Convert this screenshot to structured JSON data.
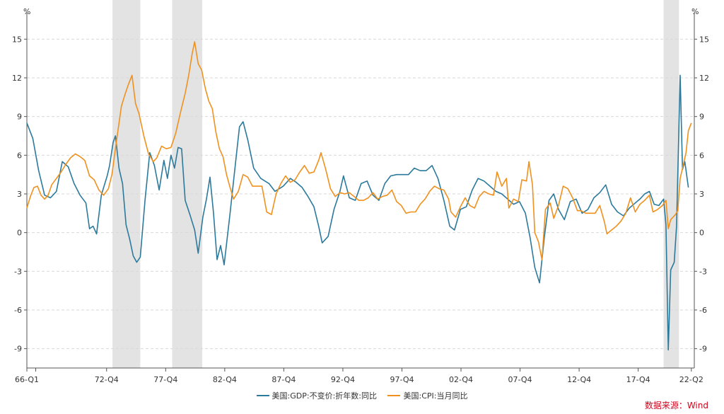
{
  "chart_data": {
    "type": "line",
    "y_unit_left": "%",
    "y_unit_right": "%",
    "ylim": [
      -10.5,
      16.5
    ],
    "y_ticks": [
      -9,
      -6,
      -3,
      0,
      3,
      6,
      9,
      12,
      15
    ],
    "x_start": 1966.0,
    "x_end": 2022.5,
    "x_ticks": [
      {
        "label": "66-Q1",
        "x": 1966.0
      },
      {
        "label": "72-Q4",
        "x": 1972.75
      },
      {
        "label": "77-Q4",
        "x": 1977.75
      },
      {
        "label": "82-Q4",
        "x": 1982.75
      },
      {
        "label": "87-Q4",
        "x": 1987.75
      },
      {
        "label": "92-Q4",
        "x": 1992.75
      },
      {
        "label": "97-Q4",
        "x": 1997.75
      },
      {
        "label": "02-Q4",
        "x": 2002.75
      },
      {
        "label": "07-Q4",
        "x": 2007.75
      },
      {
        "label": "12-Q4",
        "x": 2012.75
      },
      {
        "label": "17-Q4",
        "x": 2017.75
      },
      {
        "label": "22-Q2",
        "x": 2022.25
      }
    ],
    "recession_bands": [
      [
        1973.25,
        1975.6
      ],
      [
        1978.3,
        1980.85
      ],
      [
        2019.9,
        2021.2
      ]
    ],
    "series": [
      {
        "name": "美国:GDP:不变价:折年数:同比",
        "color": "#2b7a9c",
        "points": [
          [
            1966.0,
            8.5
          ],
          [
            1966.5,
            7.3
          ],
          [
            1967.0,
            4.8
          ],
          [
            1967.5,
            2.9
          ],
          [
            1968.0,
            2.7
          ],
          [
            1968.5,
            3.2
          ],
          [
            1969.0,
            5.5
          ],
          [
            1969.5,
            5.1
          ],
          [
            1970.0,
            3.8
          ],
          [
            1970.5,
            2.9
          ],
          [
            1971.0,
            2.3
          ],
          [
            1971.3,
            0.3
          ],
          [
            1971.6,
            0.5
          ],
          [
            1971.9,
            -0.1
          ],
          [
            1972.3,
            2.9
          ],
          [
            1972.8,
            4.4
          ],
          [
            1973.0,
            5.2
          ],
          [
            1973.3,
            7.0
          ],
          [
            1973.5,
            7.5
          ],
          [
            1973.8,
            5.0
          ],
          [
            1974.1,
            3.8
          ],
          [
            1974.4,
            0.6
          ],
          [
            1974.7,
            -0.5
          ],
          [
            1975.0,
            -1.8
          ],
          [
            1975.3,
            -2.3
          ],
          [
            1975.6,
            -1.9
          ],
          [
            1976.0,
            2.5
          ],
          [
            1976.4,
            6.2
          ],
          [
            1976.8,
            5.2
          ],
          [
            1977.2,
            3.3
          ],
          [
            1977.6,
            5.6
          ],
          [
            1977.9,
            4.2
          ],
          [
            1978.2,
            6.0
          ],
          [
            1978.5,
            5.0
          ],
          [
            1978.8,
            6.6
          ],
          [
            1979.1,
            6.5
          ],
          [
            1979.4,
            2.5
          ],
          [
            1979.8,
            1.4
          ],
          [
            1980.2,
            0.2
          ],
          [
            1980.5,
            -1.6
          ],
          [
            1980.9,
            1.2
          ],
          [
            1981.2,
            2.6
          ],
          [
            1981.5,
            4.3
          ],
          [
            1981.8,
            1.5
          ],
          [
            1982.1,
            -2.1
          ],
          [
            1982.4,
            -1.0
          ],
          [
            1982.7,
            -2.5
          ],
          [
            1983.2,
            1.5
          ],
          [
            1983.6,
            4.9
          ],
          [
            1984.0,
            8.2
          ],
          [
            1984.3,
            8.6
          ],
          [
            1984.7,
            7.2
          ],
          [
            1985.2,
            5.0
          ],
          [
            1985.8,
            4.2
          ],
          [
            1986.5,
            3.8
          ],
          [
            1987.0,
            3.2
          ],
          [
            1987.7,
            3.6
          ],
          [
            1988.3,
            4.2
          ],
          [
            1988.8,
            3.9
          ],
          [
            1989.3,
            3.5
          ],
          [
            1989.8,
            2.8
          ],
          [
            1990.3,
            2.0
          ],
          [
            1990.7,
            0.5
          ],
          [
            1991.0,
            -0.8
          ],
          [
            1991.5,
            -0.3
          ],
          [
            1992.0,
            1.8
          ],
          [
            1992.5,
            3.2
          ],
          [
            1992.8,
            4.4
          ],
          [
            1993.3,
            2.7
          ],
          [
            1993.8,
            2.5
          ],
          [
            1994.3,
            3.8
          ],
          [
            1994.8,
            4.0
          ],
          [
            1995.3,
            2.9
          ],
          [
            1995.8,
            2.5
          ],
          [
            1996.3,
            3.8
          ],
          [
            1996.8,
            4.4
          ],
          [
            1997.3,
            4.5
          ],
          [
            1997.8,
            4.5
          ],
          [
            1998.3,
            4.5
          ],
          [
            1998.8,
            5.0
          ],
          [
            1999.3,
            4.8
          ],
          [
            1999.8,
            4.8
          ],
          [
            2000.3,
            5.2
          ],
          [
            2000.8,
            4.2
          ],
          [
            2001.3,
            2.5
          ],
          [
            2001.8,
            0.5
          ],
          [
            2002.2,
            0.2
          ],
          [
            2002.7,
            1.8
          ],
          [
            2003.2,
            2.0
          ],
          [
            2003.7,
            3.3
          ],
          [
            2004.2,
            4.2
          ],
          [
            2004.7,
            4.0
          ],
          [
            2005.2,
            3.6
          ],
          [
            2005.7,
            3.2
          ],
          [
            2006.2,
            3.0
          ],
          [
            2006.7,
            2.6
          ],
          [
            2007.2,
            2.2
          ],
          [
            2007.7,
            2.4
          ],
          [
            2008.2,
            1.5
          ],
          [
            2008.6,
            -0.4
          ],
          [
            2009.0,
            -2.7
          ],
          [
            2009.4,
            -3.9
          ],
          [
            2009.8,
            -0.4
          ],
          [
            2010.2,
            2.5
          ],
          [
            2010.6,
            3.0
          ],
          [
            2011.0,
            1.8
          ],
          [
            2011.5,
            1.0
          ],
          [
            2012.0,
            2.4
          ],
          [
            2012.5,
            2.6
          ],
          [
            2013.0,
            1.5
          ],
          [
            2013.5,
            1.8
          ],
          [
            2014.0,
            2.7
          ],
          [
            2014.5,
            3.1
          ],
          [
            2015.0,
            3.7
          ],
          [
            2015.5,
            2.2
          ],
          [
            2016.0,
            1.6
          ],
          [
            2016.5,
            1.3
          ],
          [
            2017.0,
            1.9
          ],
          [
            2017.5,
            2.3
          ],
          [
            2017.9,
            2.6
          ],
          [
            2018.3,
            3.0
          ],
          [
            2018.7,
            3.2
          ],
          [
            2019.1,
            2.2
          ],
          [
            2019.5,
            2.1
          ],
          [
            2019.9,
            2.6
          ],
          [
            2020.1,
            0.6
          ],
          [
            2020.3,
            -9.1
          ],
          [
            2020.5,
            -2.9
          ],
          [
            2020.8,
            -2.3
          ],
          [
            2021.0,
            0.5
          ],
          [
            2021.3,
            12.2
          ],
          [
            2021.5,
            4.9
          ],
          [
            2021.7,
            5.5
          ],
          [
            2022.0,
            3.5
          ]
        ]
      },
      {
        "name": "美国:CPI:当月同比",
        "color": "#f0911e",
        "points": [
          [
            1966.0,
            1.9
          ],
          [
            1966.3,
            2.8
          ],
          [
            1966.6,
            3.5
          ],
          [
            1966.9,
            3.6
          ],
          [
            1967.2,
            2.9
          ],
          [
            1967.5,
            2.6
          ],
          [
            1967.8,
            2.9
          ],
          [
            1968.1,
            3.7
          ],
          [
            1968.5,
            4.2
          ],
          [
            1968.9,
            4.7
          ],
          [
            1969.3,
            5.3
          ],
          [
            1969.7,
            5.8
          ],
          [
            1970.1,
            6.1
          ],
          [
            1970.5,
            5.9
          ],
          [
            1970.9,
            5.6
          ],
          [
            1971.3,
            4.4
          ],
          [
            1971.7,
            4.1
          ],
          [
            1972.1,
            3.3
          ],
          [
            1972.5,
            2.9
          ],
          [
            1972.9,
            3.4
          ],
          [
            1973.2,
            4.5
          ],
          [
            1973.6,
            7.2
          ],
          [
            1974.0,
            9.8
          ],
          [
            1974.3,
            10.7
          ],
          [
            1974.6,
            11.5
          ],
          [
            1974.9,
            12.2
          ],
          [
            1975.2,
            10.0
          ],
          [
            1975.5,
            9.2
          ],
          [
            1975.9,
            7.5
          ],
          [
            1976.3,
            6.1
          ],
          [
            1976.7,
            5.5
          ],
          [
            1977.0,
            5.8
          ],
          [
            1977.4,
            6.7
          ],
          [
            1977.8,
            6.5
          ],
          [
            1978.2,
            6.6
          ],
          [
            1978.6,
            7.7
          ],
          [
            1979.0,
            9.3
          ],
          [
            1979.4,
            10.8
          ],
          [
            1979.7,
            12.2
          ],
          [
            1980.0,
            13.9
          ],
          [
            1980.2,
            14.8
          ],
          [
            1980.5,
            13.1
          ],
          [
            1980.8,
            12.6
          ],
          [
            1981.1,
            11.2
          ],
          [
            1981.4,
            10.2
          ],
          [
            1981.7,
            9.6
          ],
          [
            1982.0,
            7.8
          ],
          [
            1982.3,
            6.5
          ],
          [
            1982.6,
            5.9
          ],
          [
            1982.9,
            4.5
          ],
          [
            1983.2,
            3.5
          ],
          [
            1983.5,
            2.6
          ],
          [
            1983.9,
            3.2
          ],
          [
            1984.3,
            4.5
          ],
          [
            1984.7,
            4.3
          ],
          [
            1985.1,
            3.6
          ],
          [
            1985.5,
            3.6
          ],
          [
            1985.9,
            3.6
          ],
          [
            1986.3,
            1.6
          ],
          [
            1986.7,
            1.4
          ],
          [
            1987.1,
            3.0
          ],
          [
            1987.5,
            3.8
          ],
          [
            1987.9,
            4.4
          ],
          [
            1988.3,
            3.9
          ],
          [
            1988.7,
            4.1
          ],
          [
            1989.1,
            4.7
          ],
          [
            1989.5,
            5.2
          ],
          [
            1989.9,
            4.6
          ],
          [
            1990.3,
            4.7
          ],
          [
            1990.7,
            5.6
          ],
          [
            1990.9,
            6.2
          ],
          [
            1991.3,
            4.9
          ],
          [
            1991.7,
            3.4
          ],
          [
            1992.1,
            2.8
          ],
          [
            1992.5,
            3.1
          ],
          [
            1992.9,
            3.0
          ],
          [
            1993.3,
            3.1
          ],
          [
            1993.7,
            2.8
          ],
          [
            1994.1,
            2.5
          ],
          [
            1994.5,
            2.5
          ],
          [
            1994.9,
            2.7
          ],
          [
            1995.3,
            3.1
          ],
          [
            1995.7,
            2.6
          ],
          [
            1996.1,
            2.8
          ],
          [
            1996.5,
            2.9
          ],
          [
            1996.9,
            3.3
          ],
          [
            1997.3,
            2.4
          ],
          [
            1997.7,
            2.1
          ],
          [
            1998.1,
            1.5
          ],
          [
            1998.5,
            1.6
          ],
          [
            1998.9,
            1.6
          ],
          [
            1999.3,
            2.2
          ],
          [
            1999.7,
            2.6
          ],
          [
            2000.1,
            3.2
          ],
          [
            2000.5,
            3.6
          ],
          [
            2000.9,
            3.4
          ],
          [
            2001.3,
            3.3
          ],
          [
            2001.7,
            2.6
          ],
          [
            2001.9,
            1.6
          ],
          [
            2002.3,
            1.2
          ],
          [
            2002.7,
            2.0
          ],
          [
            2003.1,
            2.7
          ],
          [
            2003.5,
            2.1
          ],
          [
            2003.9,
            1.9
          ],
          [
            2004.3,
            2.8
          ],
          [
            2004.7,
            3.2
          ],
          [
            2005.1,
            3.0
          ],
          [
            2005.5,
            2.9
          ],
          [
            2005.8,
            4.7
          ],
          [
            2006.2,
            3.6
          ],
          [
            2006.6,
            4.2
          ],
          [
            2006.8,
            1.9
          ],
          [
            2007.2,
            2.6
          ],
          [
            2007.6,
            2.4
          ],
          [
            2007.9,
            4.1
          ],
          [
            2008.3,
            4.0
          ],
          [
            2008.5,
            5.5
          ],
          [
            2008.8,
            3.7
          ],
          [
            2009.0,
            0.0
          ],
          [
            2009.3,
            -0.7
          ],
          [
            2009.6,
            -2.1
          ],
          [
            2009.9,
            1.8
          ],
          [
            2010.3,
            2.3
          ],
          [
            2010.6,
            1.1
          ],
          [
            2011.0,
            2.1
          ],
          [
            2011.4,
            3.6
          ],
          [
            2011.8,
            3.4
          ],
          [
            2012.2,
            2.7
          ],
          [
            2012.6,
            1.7
          ],
          [
            2012.9,
            1.7
          ],
          [
            2013.3,
            1.5
          ],
          [
            2013.7,
            1.5
          ],
          [
            2014.1,
            1.5
          ],
          [
            2014.5,
            2.1
          ],
          [
            2014.9,
            0.8
          ],
          [
            2015.1,
            -0.1
          ],
          [
            2015.5,
            0.2
          ],
          [
            2015.9,
            0.5
          ],
          [
            2016.3,
            0.9
          ],
          [
            2016.7,
            1.5
          ],
          [
            2017.1,
            2.7
          ],
          [
            2017.5,
            1.6
          ],
          [
            2017.9,
            2.2
          ],
          [
            2018.3,
            2.5
          ],
          [
            2018.7,
            2.9
          ],
          [
            2019.0,
            1.6
          ],
          [
            2019.4,
            1.8
          ],
          [
            2019.8,
            2.1
          ],
          [
            2020.1,
            2.5
          ],
          [
            2020.3,
            0.3
          ],
          [
            2020.5,
            1.0
          ],
          [
            2020.9,
            1.4
          ],
          [
            2021.1,
            1.7
          ],
          [
            2021.3,
            4.2
          ],
          [
            2021.6,
            5.4
          ],
          [
            2021.8,
            6.2
          ],
          [
            2022.0,
            7.9
          ],
          [
            2022.25,
            8.5
          ]
        ]
      }
    ]
  },
  "source_text": "数据来源：Wind"
}
